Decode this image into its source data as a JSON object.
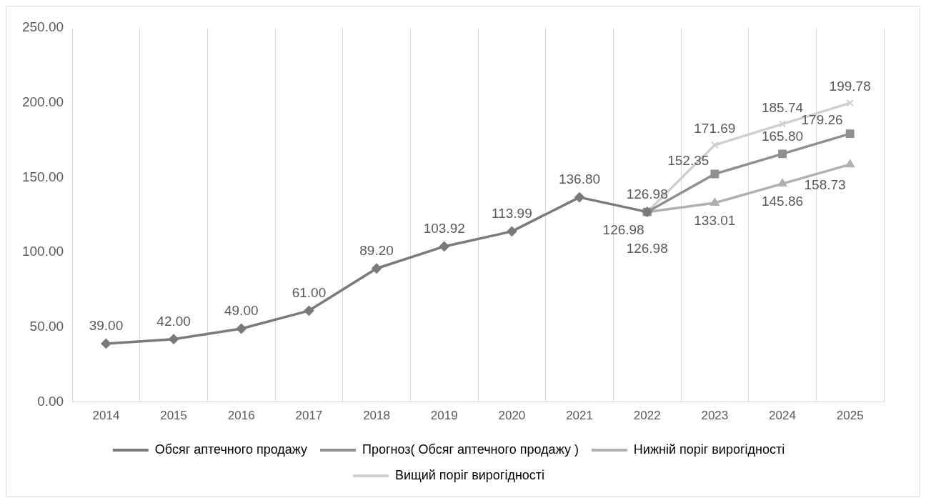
{
  "chart_data": {
    "type": "line",
    "categories": [
      "2014",
      "2015",
      "2016",
      "2017",
      "2018",
      "2019",
      "2020",
      "2021",
      "2022",
      "2023",
      "2024",
      "2025"
    ],
    "series": [
      {
        "name": "Обсяг аптечного продажу",
        "color": "#7a7a7a",
        "marker": "diamond",
        "values": [
          39.0,
          42.0,
          49.0,
          61.0,
          89.2,
          103.92,
          113.99,
          136.8,
          126.98,
          null,
          null,
          null
        ],
        "value_labels": [
          "39.00",
          "42.00",
          "49.00",
          "61.00",
          "89.20",
          "103.92",
          "113.99",
          "136.80",
          "126.98",
          null,
          null,
          null
        ]
      },
      {
        "name": "Прогноз( Обсяг аптечного продажу )",
        "color": "#8f8f8f",
        "marker": "square",
        "values": [
          null,
          null,
          null,
          null,
          null,
          null,
          null,
          null,
          126.98,
          152.35,
          165.8,
          179.26
        ],
        "value_labels": [
          null,
          null,
          null,
          null,
          null,
          null,
          null,
          null,
          "126.98",
          "152.35",
          "165.80",
          "179.26"
        ]
      },
      {
        "name": "Нижній поріг вирогідності",
        "color": "#b0b0b0",
        "marker": "triangle",
        "values": [
          null,
          null,
          null,
          null,
          null,
          null,
          null,
          null,
          126.98,
          133.01,
          145.86,
          158.73
        ],
        "value_labels": [
          null,
          null,
          null,
          null,
          null,
          null,
          null,
          null,
          "126.98",
          "133.01",
          "145.86",
          "158.73"
        ]
      },
      {
        "name": "Вищий поріг вирогідності",
        "color": "#d0d0d0",
        "marker": "cross",
        "values": [
          null,
          null,
          null,
          null,
          null,
          null,
          null,
          null,
          126.98,
          171.69,
          185.74,
          199.78
        ],
        "value_labels": [
          null,
          null,
          null,
          null,
          null,
          null,
          null,
          null,
          null,
          "171.69",
          "185.74",
          "199.78"
        ]
      }
    ],
    "ylim": [
      0,
      250
    ],
    "yticks": [
      {
        "value": 0,
        "label": "0.00"
      },
      {
        "value": 50,
        "label": "50.00"
      },
      {
        "value": 100,
        "label": "100.00"
      },
      {
        "value": 150,
        "label": "150.00"
      },
      {
        "value": 200,
        "label": "200.00"
      },
      {
        "value": 250,
        "label": "250.00"
      }
    ],
    "grid": "x",
    "legend": "bottom",
    "line_style": "solid"
  }
}
